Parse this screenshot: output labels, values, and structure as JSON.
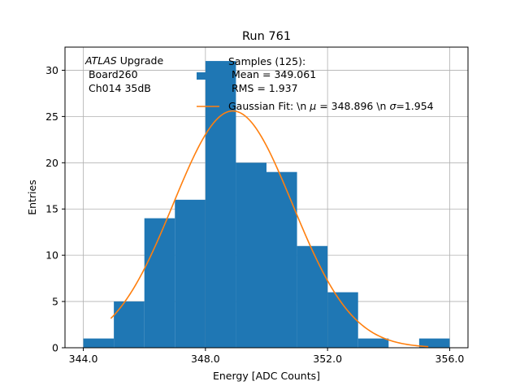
{
  "chart_data": {
    "type": "bar",
    "title": "Run 761",
    "xlabel": "Energy [ADC Counts]",
    "ylabel": "Entries",
    "xlim": [
      343.4,
      356.6
    ],
    "ylim": [
      0,
      32.5
    ],
    "xticks": [
      344.0,
      348.0,
      352.0,
      356.0
    ],
    "xtick_labels": [
      "344.0",
      "348.0",
      "352.0",
      "356.0"
    ],
    "yticks": [
      0,
      5,
      10,
      15,
      20,
      25,
      30
    ],
    "ytick_labels": [
      "0",
      "5",
      "10",
      "15",
      "20",
      "25",
      "30"
    ],
    "grid": true,
    "bars": [
      {
        "x0": 344.0,
        "x1": 345.0,
        "value": 1
      },
      {
        "x0": 345.0,
        "x1": 346.0,
        "value": 5
      },
      {
        "x0": 346.0,
        "x1": 347.0,
        "value": 14
      },
      {
        "x0": 347.0,
        "x1": 348.0,
        "value": 16
      },
      {
        "x0": 348.0,
        "x1": 349.0,
        "value": 31
      },
      {
        "x0": 349.0,
        "x1": 350.0,
        "value": 20
      },
      {
        "x0": 350.0,
        "x1": 351.0,
        "value": 19
      },
      {
        "x0": 351.0,
        "x1": 352.0,
        "value": 11
      },
      {
        "x0": 352.0,
        "x1": 353.0,
        "value": 6
      },
      {
        "x0": 353.0,
        "x1": 354.0,
        "value": 1
      },
      {
        "x0": 354.0,
        "x1": 355.0,
        "value": 0
      },
      {
        "x0": 355.0,
        "x1": 356.0,
        "value": 1
      }
    ],
    "fit": {
      "mu": 348.896,
      "sigma": 1.954,
      "amplitude": 25.6,
      "x_range": [
        344.9,
        355.3
      ]
    },
    "colors": {
      "bars": "#1f77b4",
      "fit": "#ff7f0e",
      "grid": "#b0b0b0"
    },
    "annotation": {
      "italic_part": "ATLAS",
      "line1_rest": " Upgrade",
      "line2": " Board260",
      "line3": " Ch014 35dB"
    },
    "legend": {
      "position": "top-right",
      "histogram_lines": [
        "Samples (125):",
        " Mean = 349.061",
        " RMS = 1.937"
      ],
      "fit_prefix": "Gaussian Fit: \\n ",
      "fit_mu_symbol": "μ",
      "fit_mid": " = 348.896 \\n ",
      "fit_sigma_symbol": "σ",
      "fit_suffix": "=1.954"
    }
  }
}
